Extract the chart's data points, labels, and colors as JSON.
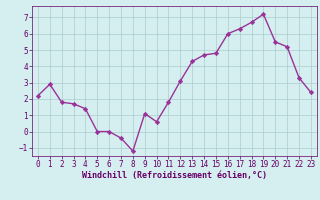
{
  "x": [
    0,
    1,
    2,
    3,
    4,
    5,
    6,
    7,
    8,
    9,
    10,
    11,
    12,
    13,
    14,
    15,
    16,
    17,
    18,
    19,
    20,
    21,
    22,
    23
  ],
  "y": [
    2.2,
    2.9,
    1.8,
    1.7,
    1.4,
    0.0,
    0.0,
    -0.4,
    -1.2,
    1.1,
    0.6,
    1.8,
    3.1,
    4.3,
    4.7,
    4.8,
    6.0,
    6.3,
    6.7,
    7.2,
    5.5,
    5.2,
    3.3,
    2.4
  ],
  "line_color": "#993399",
  "marker": "D",
  "marker_size": 2.2,
  "background_color": "#d5eef0",
  "grid_color": "#aacccc",
  "xlabel": "Windchill (Refroidissement éolien,°C)",
  "xlabel_color": "#660066",
  "tick_color": "#660066",
  "ylim": [
    -1.5,
    7.7
  ],
  "yticks": [
    -1,
    0,
    1,
    2,
    3,
    4,
    5,
    6,
    7
  ],
  "xlim": [
    -0.5,
    23.5
  ],
  "xticks": [
    0,
    1,
    2,
    3,
    4,
    5,
    6,
    7,
    8,
    9,
    10,
    11,
    12,
    13,
    14,
    15,
    16,
    17,
    18,
    19,
    20,
    21,
    22,
    23
  ],
  "font_family": "monospace",
  "tick_fontsize": 5.5,
  "xlabel_fontsize": 6.0,
  "linewidth": 1.0
}
